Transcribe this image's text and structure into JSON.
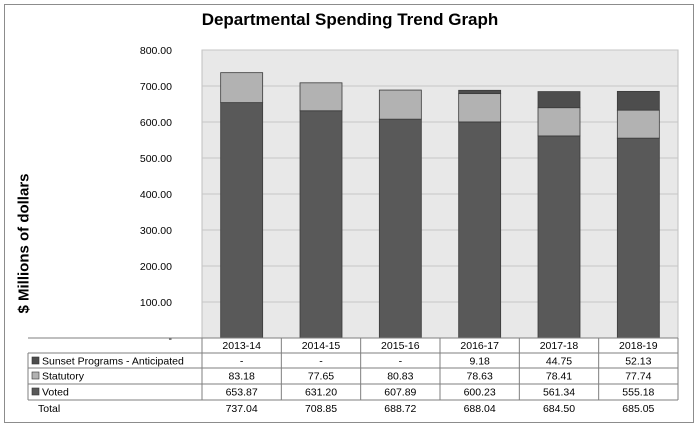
{
  "chart_data": {
    "type": "bar",
    "stacked": true,
    "title": "Departmental Spending Trend Graph",
    "ylabel": "$ Millions of dollars",
    "xlabel": "",
    "ylim": [
      0,
      800
    ],
    "y_ticks": [
      "-",
      "100.00",
      "200.00",
      "300.00",
      "400.00",
      "500.00",
      "600.00",
      "700.00",
      "800.00"
    ],
    "categories": [
      "2013-14",
      "2014-15",
      "2015-16",
      "2016-17",
      "2017-18",
      "2018-19"
    ],
    "grid": true,
    "legend_position": "data-table-left",
    "series": [
      {
        "name": "Voted",
        "color": "#595959",
        "values": [
          653.87,
          631.2,
          607.89,
          600.23,
          561.34,
          555.18
        ],
        "labels": [
          "653.87",
          "631.20",
          "607.89",
          "600.23",
          "561.34",
          "555.18"
        ]
      },
      {
        "name": "Statutory",
        "color": "#b2b2b2",
        "values": [
          83.18,
          77.65,
          80.83,
          78.63,
          78.41,
          77.74
        ],
        "labels": [
          "83.18",
          "77.65",
          "80.83",
          "78.63",
          "78.41",
          "77.74"
        ]
      },
      {
        "name": "Sunset Programs - Anticipated",
        "color": "#4d4d4d",
        "values": [
          0,
          0,
          0,
          9.18,
          44.75,
          52.13
        ],
        "labels": [
          "-",
          "-",
          "-",
          "9.18",
          "44.75",
          "52.13"
        ]
      }
    ],
    "table_rows": [
      "Sunset Programs - Anticipated",
      "Statutory",
      "Voted",
      "Total"
    ],
    "totals": {
      "name": "Total",
      "labels": [
        "737.04",
        "708.85",
        "688.72",
        "688.04",
        "684.50",
        "685.05"
      ]
    }
  }
}
